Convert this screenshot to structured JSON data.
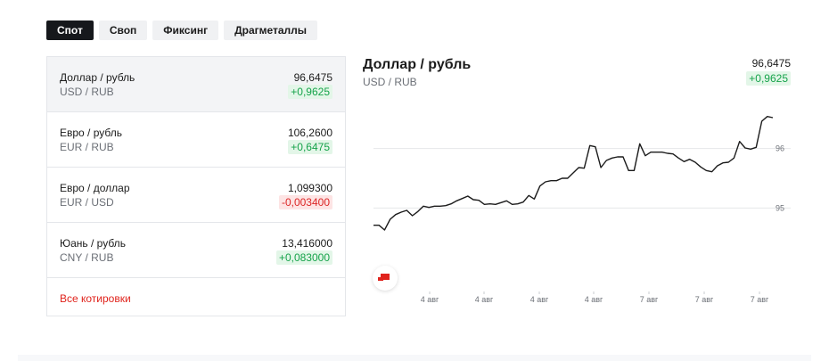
{
  "tabs": [
    {
      "label": "Спот",
      "active": true
    },
    {
      "label": "Своп",
      "active": false
    },
    {
      "label": "Фиксинг",
      "active": false
    },
    {
      "label": "Драгметаллы",
      "active": false
    }
  ],
  "quotes": [
    {
      "name": "Доллар / рубль",
      "code": "USD / RUB",
      "value": "96,6475",
      "change": "+0,9625",
      "direction": "up",
      "selected": true
    },
    {
      "name": "Евро / рубль",
      "code": "EUR / RUB",
      "value": "106,2600",
      "change": "+0,6475",
      "direction": "up",
      "selected": false
    },
    {
      "name": "Евро / доллар",
      "code": "EUR / USD",
      "value": "1,099300",
      "change": "-0,003400",
      "direction": "down",
      "selected": false
    },
    {
      "name": "Юань / рубль",
      "code": "CNY / RUB",
      "value": "13,416000",
      "change": "+0,083000",
      "direction": "up",
      "selected": false
    }
  ],
  "all_quotes_link": "Все котировки",
  "selected_chart": {
    "title": "Доллар / рубль",
    "code": "USD / RUB",
    "value": "96,6475",
    "change": "+0,9625"
  },
  "colors": {
    "accent": "#e0231c",
    "positive": "#16a34a",
    "negative": "#dc2626",
    "active_tab": "#16181c"
  },
  "chart_data": {
    "type": "line",
    "title": "",
    "xlabel": "",
    "ylabel": "",
    "ylim": [
      94.15,
      96.85
    ],
    "yticks": [
      95,
      96
    ],
    "xticks": [
      "4 авг",
      "4 авг",
      "4 авг",
      "4 авг",
      "7 авг",
      "7 авг",
      "7 авг"
    ],
    "grid": true,
    "series": [
      {
        "values": [
          94.71,
          94.71,
          94.63,
          94.81,
          94.89,
          94.93,
          94.96,
          94.87,
          94.94,
          95.03,
          95.01,
          95.03,
          95.03,
          95.04,
          95.07,
          95.12,
          95.16,
          95.2,
          95.14,
          95.13,
          95.06,
          95.07,
          95.06,
          95.09,
          95.12,
          95.06,
          95.07,
          95.1,
          95.21,
          95.15,
          95.37,
          95.44,
          95.46,
          95.46,
          95.5,
          95.5,
          95.59,
          95.68,
          95.67,
          96.05,
          96.03,
          95.68,
          95.8,
          95.84,
          95.86,
          95.86,
          95.63,
          95.63,
          96.08,
          95.88,
          95.94,
          95.94,
          95.94,
          95.92,
          95.91,
          95.84,
          95.78,
          95.82,
          95.77,
          95.69,
          95.63,
          95.61,
          95.71,
          95.76,
          95.77,
          95.84,
          96.12,
          96.01,
          95.99,
          96.02,
          96.46,
          96.54,
          96.52
        ]
      }
    ]
  }
}
